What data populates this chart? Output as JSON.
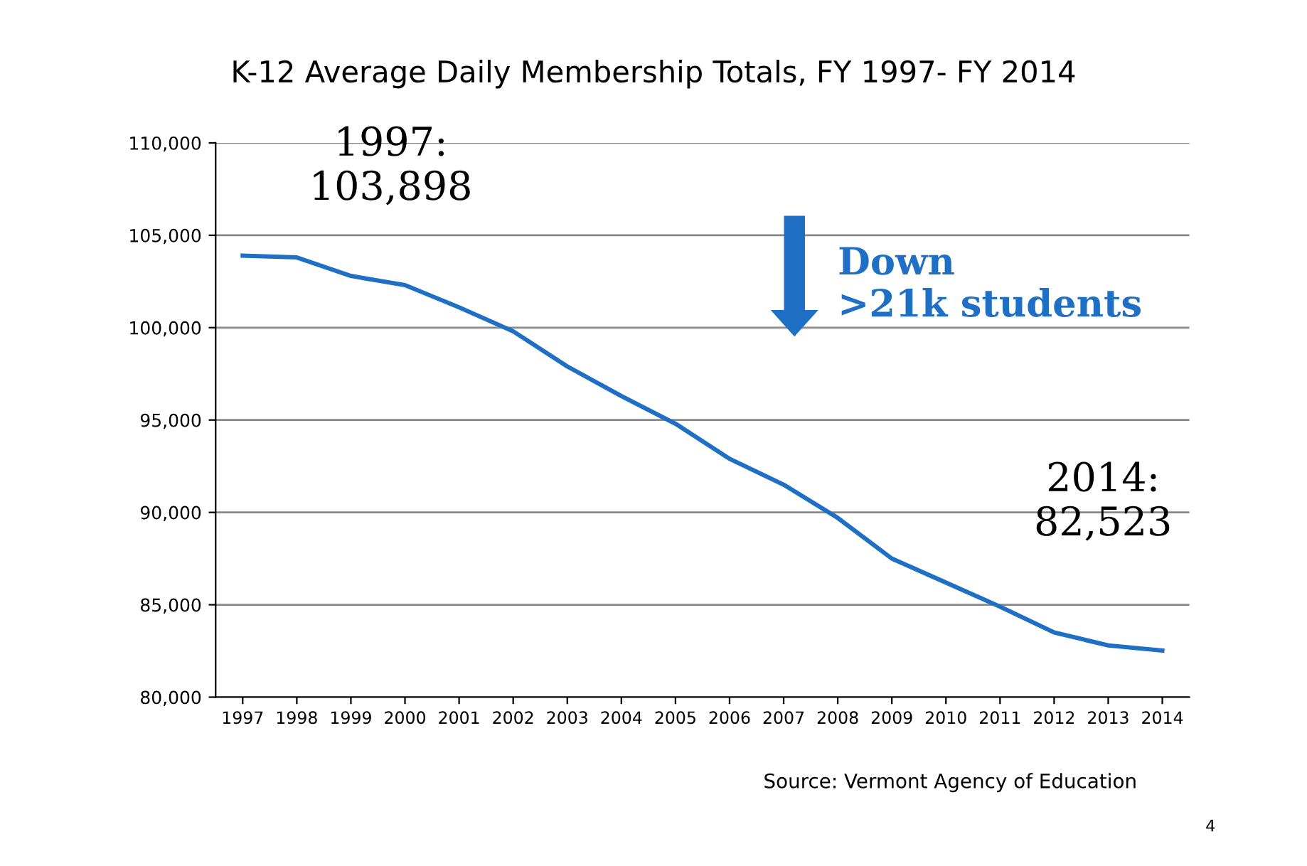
{
  "chart_data": {
    "type": "line",
    "title": "K-12 Average Daily Membership Totals, FY 1997- FY 2014",
    "categories": [
      "1997",
      "1998",
      "1999",
      "2000",
      "2001",
      "2002",
      "2003",
      "2004",
      "2005",
      "2006",
      "2007",
      "2008",
      "2009",
      "2010",
      "2011",
      "2012",
      "2013",
      "2014"
    ],
    "series": [
      {
        "color": "#1f6fc5",
        "values": [
          103898,
          103800,
          102800,
          102300,
          101100,
          99800,
          97900,
          96300,
          94800,
          92900,
          91500,
          89700,
          87500,
          86200,
          84900,
          83500,
          82800,
          82523
        ]
      }
    ],
    "ylim": [
      80000,
      110000
    ],
    "yticks": [
      {
        "value": 80000,
        "label": "80,000"
      },
      {
        "value": 85000,
        "label": "85,000"
      },
      {
        "value": 90000,
        "label": "90,000"
      },
      {
        "value": 95000,
        "label": "95,000"
      },
      {
        "value": 100000,
        "label": "100,000"
      },
      {
        "value": 105000,
        "label": "105,000"
      },
      {
        "value": 110000,
        "label": "110,000"
      }
    ],
    "grid": "y",
    "marker": "none",
    "line_style": "solid",
    "legend": false,
    "annotations": [
      {
        "text": "1997:\n103,898",
        "x": "1997",
        "y": 103898
      },
      {
        "text": "Down\n>21k students"
      },
      {
        "text": "2014:\n82,523",
        "x": "2014",
        "y": 82523
      },
      {
        "text": "Source: Vermont Agency of Education"
      },
      {
        "text": "4"
      }
    ]
  }
}
